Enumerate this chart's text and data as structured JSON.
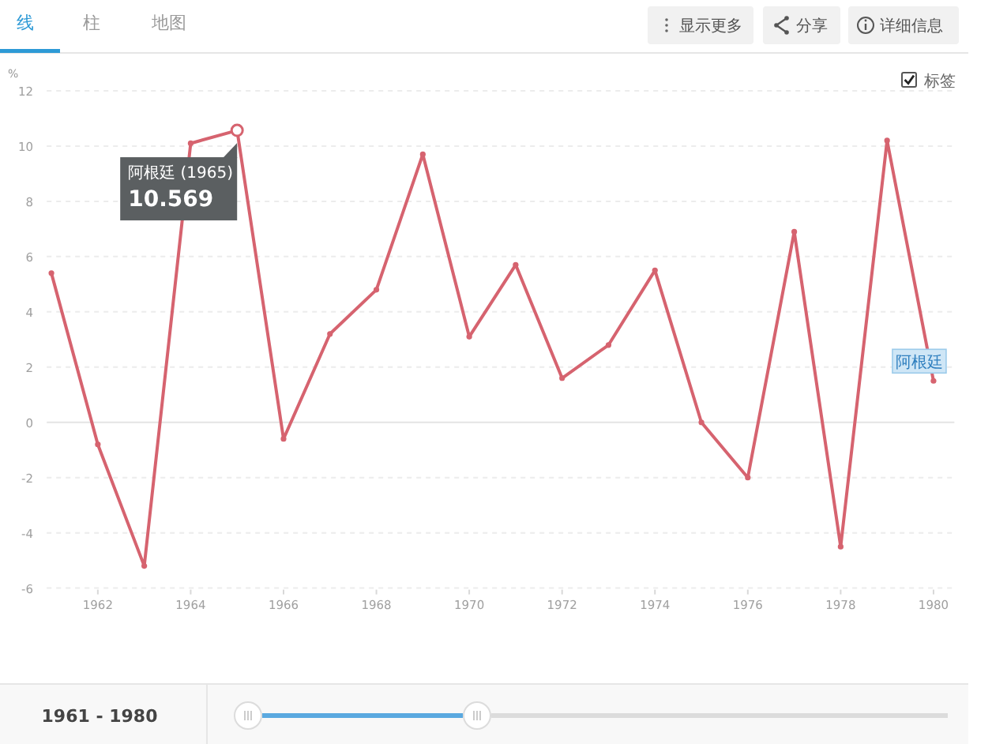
{
  "chart_data": {
    "type": "line",
    "ylabel": "%",
    "x": [
      1961,
      1962,
      1963,
      1964,
      1965,
      1966,
      1967,
      1968,
      1969,
      1970,
      1971,
      1972,
      1973,
      1974,
      1975,
      1976,
      1977,
      1978,
      1979,
      1980
    ],
    "series": [
      {
        "name": "阿根廷",
        "color": "#d6636f",
        "values": [
          5.4,
          -0.8,
          -5.2,
          10.1,
          10.569,
          -0.6,
          3.2,
          4.8,
          9.7,
          3.1,
          5.7,
          1.6,
          2.8,
          5.5,
          0.0,
          -2.0,
          6.9,
          -4.5,
          10.2,
          1.5
        ]
      }
    ],
    "xlim": [
      1960.9,
      1980.45
    ],
    "xticks": [
      1962,
      1964,
      1966,
      1968,
      1970,
      1972,
      1974,
      1976,
      1978,
      1980
    ],
    "ylim": [
      -6,
      12
    ],
    "yticks": [
      -6,
      -4,
      -2,
      0,
      2,
      4,
      6,
      8,
      10,
      12
    ],
    "grid": "y",
    "marker": "circle",
    "annotations": [
      "线",
      "柱",
      "地图",
      "显示更多",
      "分享",
      "详细信息",
      "标签",
      "1961 - 1980",
      {
        "text": "阿根廷 (1965)",
        "x": 1965,
        "y": 10.569
      },
      {
        "text": "10.569",
        "x": 1965,
        "y": 10.569
      }
    ]
  }
}
